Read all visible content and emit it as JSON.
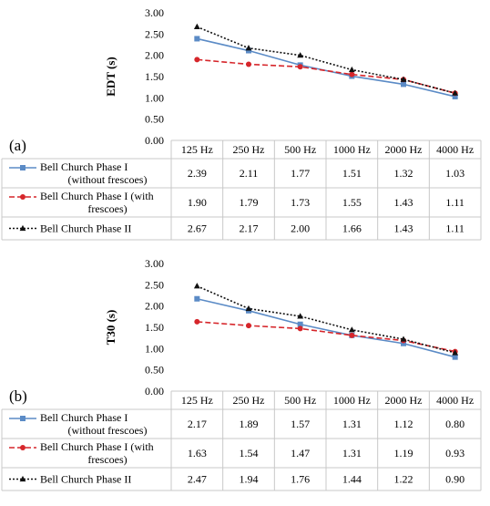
{
  "chart_data": [
    {
      "type": "line",
      "panel_label": "(a)",
      "ylabel": "EDT (s)",
      "ylim": [
        0,
        3
      ],
      "yticks": [
        "0.00",
        "0.50",
        "1.00",
        "1.50",
        "2.00",
        "2.50",
        "3.00"
      ],
      "categories": [
        "125 Hz",
        "250 Hz",
        "500 Hz",
        "1000 Hz",
        "2000 Hz",
        "4000 Hz"
      ],
      "series": [
        {
          "name": "Bell Church Phase I (without frescoes)",
          "name_lines": [
            "Bell Church Phase I",
            "(without frescoes)"
          ],
          "values": [
            2.39,
            2.11,
            1.77,
            1.51,
            1.32,
            1.03
          ],
          "labels": [
            "2.39",
            "2.11",
            "1.77",
            "1.51",
            "1.32",
            "1.03"
          ],
          "color": "#5b8bc6",
          "dash": "",
          "marker": "square"
        },
        {
          "name": "Bell Church Phase I (with frescoes)",
          "name_lines": [
            "Bell Church Phase I (with",
            "frescoes)"
          ],
          "values": [
            1.9,
            1.79,
            1.73,
            1.55,
            1.43,
            1.11
          ],
          "labels": [
            "1.90",
            "1.79",
            "1.73",
            "1.55",
            "1.43",
            "1.11"
          ],
          "color": "#d6262b",
          "dash": "6,3",
          "marker": "circle"
        },
        {
          "name": "Bell Church Phase II",
          "name_lines": [
            "Bell Church Phase II"
          ],
          "values": [
            2.67,
            2.17,
            2.0,
            1.66,
            1.43,
            1.11
          ],
          "labels": [
            "2.67",
            "2.17",
            "2.00",
            "1.66",
            "1.43",
            "1.11"
          ],
          "color": "#111111",
          "dash": "2,2",
          "marker": "triangle"
        }
      ],
      "grid": false,
      "legend": "data table"
    },
    {
      "type": "line",
      "panel_label": "(b)",
      "ylabel": "T30 (s)",
      "ylim": [
        0,
        3
      ],
      "yticks": [
        "0.00",
        "0.50",
        "1.00",
        "1.50",
        "2.00",
        "2.50",
        "3.00"
      ],
      "categories": [
        "125 Hz",
        "250 Hz",
        "500 Hz",
        "1000 Hz",
        "2000 Hz",
        "4000 Hz"
      ],
      "series": [
        {
          "name": "Bell Church Phase I (without frescoes)",
          "name_lines": [
            "Bell Church Phase I",
            "(without frescoes)"
          ],
          "values": [
            2.17,
            1.89,
            1.57,
            1.31,
            1.12,
            0.8
          ],
          "labels": [
            "2.17",
            "1.89",
            "1.57",
            "1.31",
            "1.12",
            "0.80"
          ],
          "color": "#5b8bc6",
          "dash": "",
          "marker": "square"
        },
        {
          "name": "Bell Church Phase I (with frescoes)",
          "name_lines": [
            "Bell Church Phase I (with",
            "frescoes)"
          ],
          "values": [
            1.63,
            1.54,
            1.47,
            1.31,
            1.19,
            0.93
          ],
          "labels": [
            "1.63",
            "1.54",
            "1.47",
            "1.31",
            "1.19",
            "0.93"
          ],
          "color": "#d6262b",
          "dash": "6,3",
          "marker": "circle"
        },
        {
          "name": "Bell Church Phase II",
          "name_lines": [
            "Bell Church Phase II"
          ],
          "values": [
            2.47,
            1.94,
            1.76,
            1.44,
            1.22,
            0.9
          ],
          "labels": [
            "2.47",
            "1.94",
            "1.76",
            "1.44",
            "1.22",
            "0.90"
          ],
          "color": "#111111",
          "dash": "2,2",
          "marker": "triangle"
        }
      ],
      "grid": false,
      "legend": "data table"
    }
  ]
}
